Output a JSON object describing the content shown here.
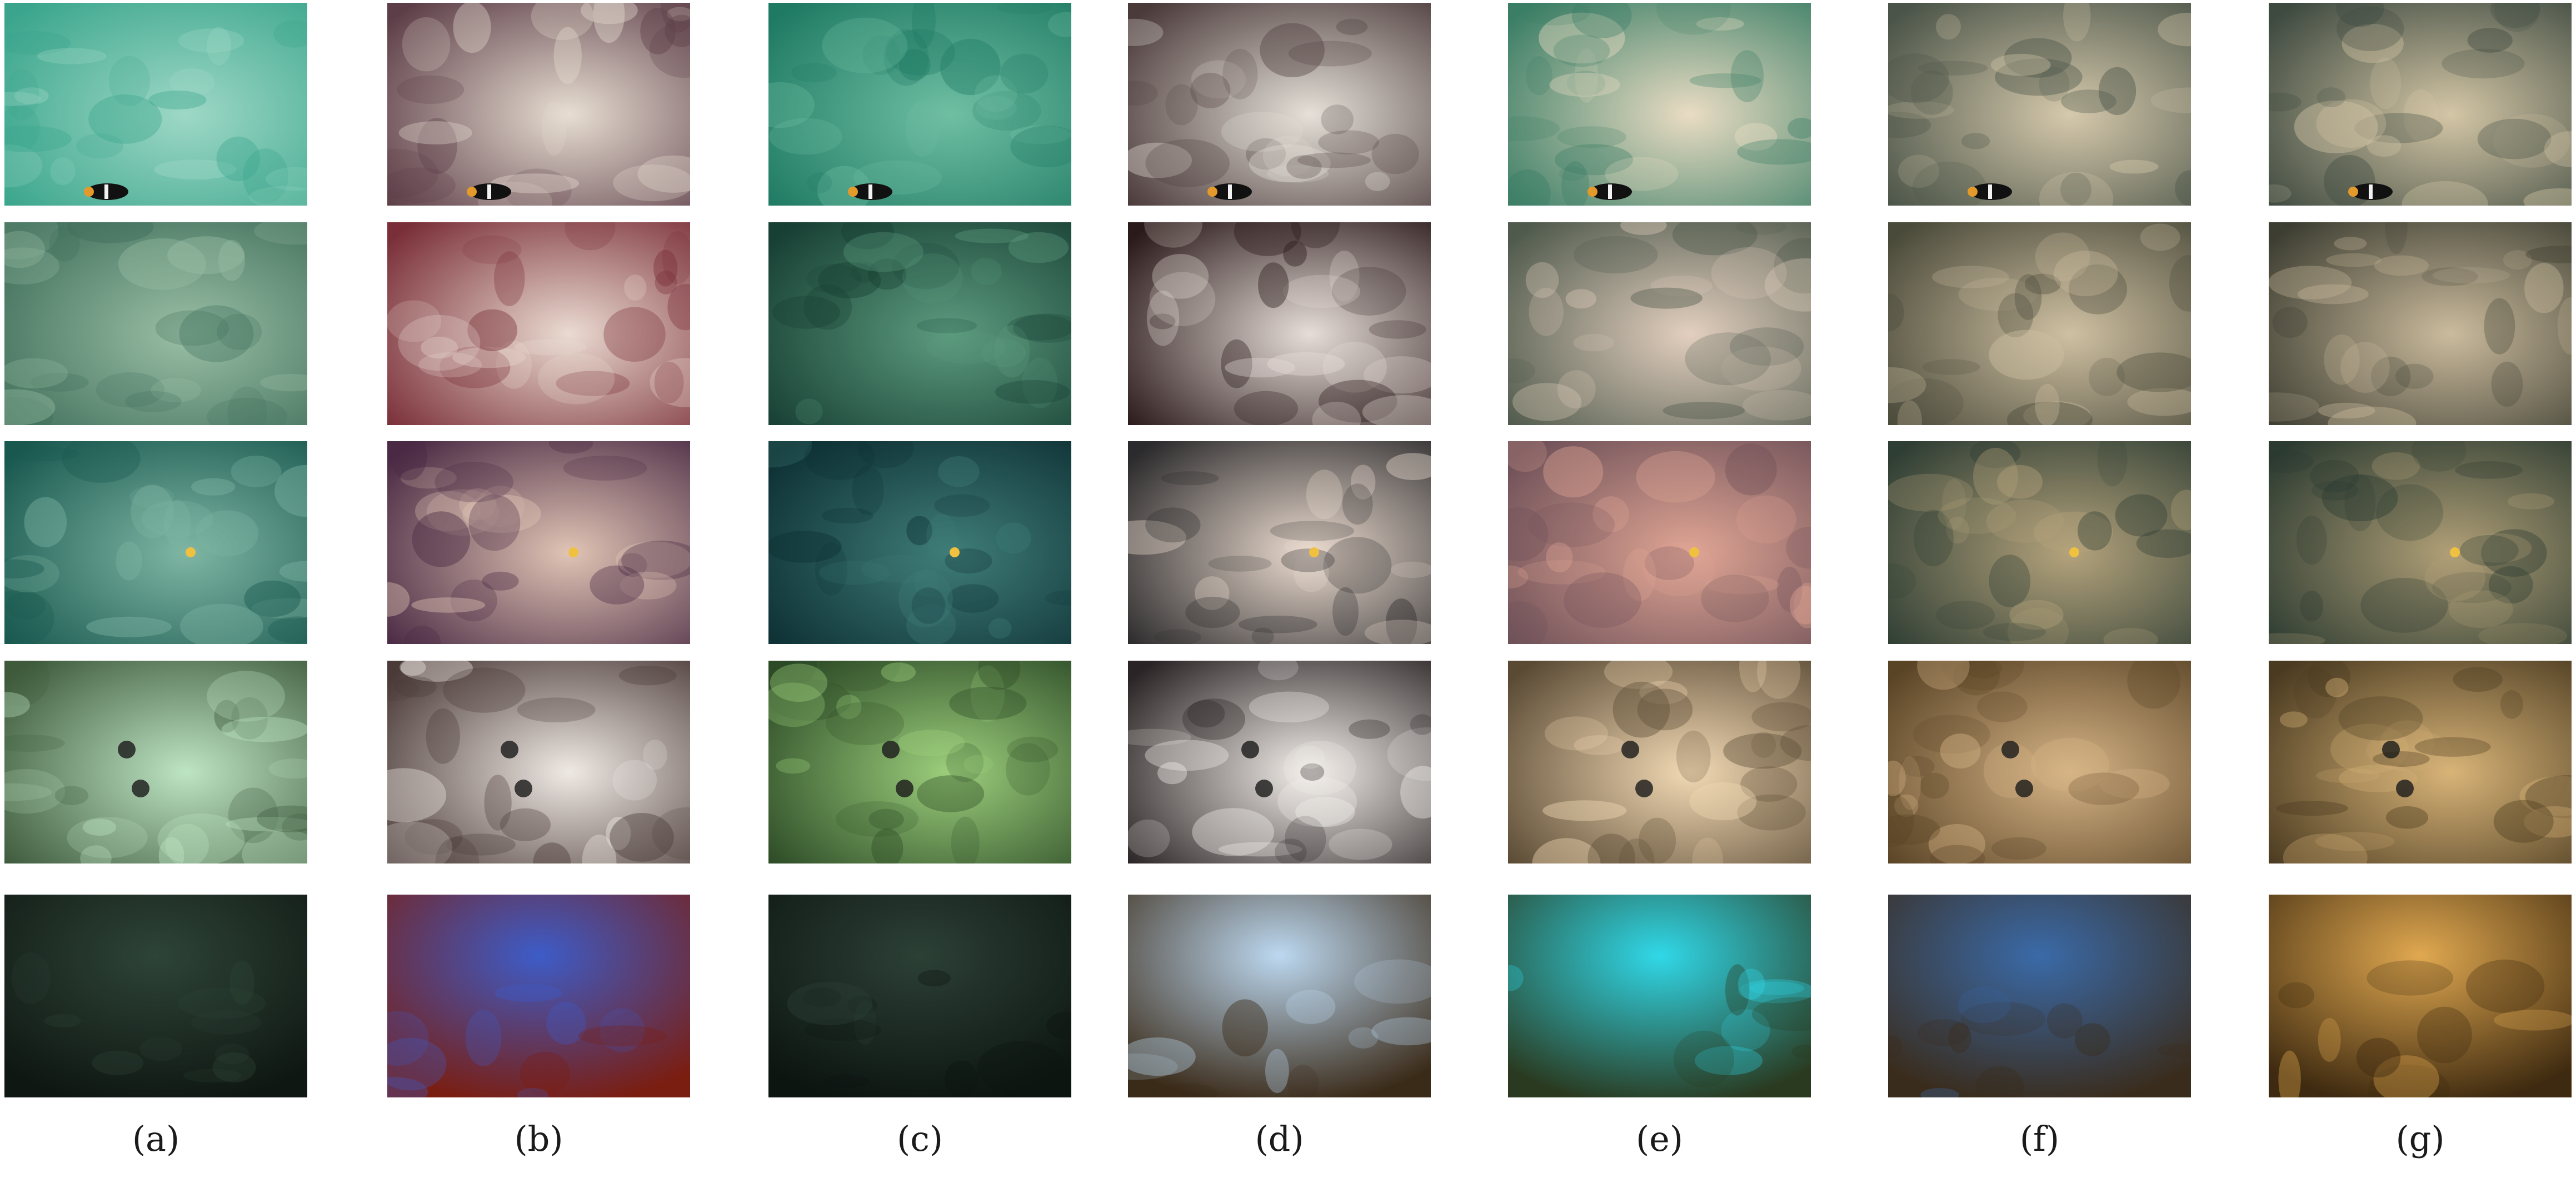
{
  "figure": {
    "columns": [
      {
        "label": "(a)"
      },
      {
        "label": "(b)"
      },
      {
        "label": "(c)"
      },
      {
        "label": "(d)"
      },
      {
        "label": "(e)"
      },
      {
        "label": "(f)"
      },
      {
        "label": "(g)"
      }
    ],
    "rows": [
      {
        "scene": "coral reef with black-and-white fish",
        "colors": [
          [
            "#3aa58c",
            "#9ed8c6"
          ],
          [
            "#5d3e48",
            "#e7ded2"
          ],
          [
            "#1f7a63",
            "#6fbfa3"
          ],
          [
            "#4a3a3a",
            "#e5e0d8"
          ],
          [
            "#3b7e66",
            "#e9dcc3"
          ],
          [
            "#4a5448",
            "#d6c9ac"
          ],
          [
            "#3e4a40",
            "#d4c6a6"
          ]
        ]
      },
      {
        "scene": "rocky seabed",
        "colors": [
          [
            "#3f6e5a",
            "#9bbfa6"
          ],
          [
            "#7a2f38",
            "#eadbd1"
          ],
          [
            "#173f33",
            "#5c9b7f"
          ],
          [
            "#2a1a1a",
            "#e6ddd8"
          ],
          [
            "#4f5a4c",
            "#e3cfbf"
          ],
          [
            "#4a4a3a",
            "#cfc0a2"
          ],
          [
            "#3d3e32",
            "#cbbb9d"
          ]
        ]
      },
      {
        "scene": "coral reef with small yellow fish",
        "colors": [
          [
            "#19584f",
            "#7fb6a4"
          ],
          [
            "#4a2a44",
            "#e0c4b4"
          ],
          [
            "#0d2f33",
            "#3f7d78"
          ],
          [
            "#2b2a2c",
            "#ecdcd0"
          ],
          [
            "#6e5058",
            "#e0a594"
          ],
          [
            "#2f3e34",
            "#b4a37c"
          ],
          [
            "#2c3b31",
            "#b09f77"
          ]
        ]
      },
      {
        "scene": "coral with sea urchins",
        "colors": [
          [
            "#3e5a3c",
            "#bde4c3"
          ],
          [
            "#4a3a38",
            "#efe9e4"
          ],
          [
            "#2c4a26",
            "#9ccf7c"
          ],
          [
            "#2b2426",
            "#f3efea"
          ],
          [
            "#5a4a34",
            "#f2d9b4"
          ],
          [
            "#5a4426",
            "#d6b486"
          ],
          [
            "#4a3a20",
            "#d8b478"
          ]
        ]
      },
      {
        "scene": "dark sandy seabed",
        "colors": [
          [
            "#0f1712",
            "#2e4438"
          ],
          [
            "#7a1e12",
            "#3d5cc8"
          ],
          [
            "#0d1511",
            "#2c4036"
          ],
          [
            "#3a2a18",
            "#bcd8f0"
          ],
          [
            "#2a3a20",
            "#30d8e8"
          ],
          [
            "#3a2c1c",
            "#3a6aa8"
          ],
          [
            "#3e2a10",
            "#e0a850"
          ]
        ]
      }
    ]
  }
}
